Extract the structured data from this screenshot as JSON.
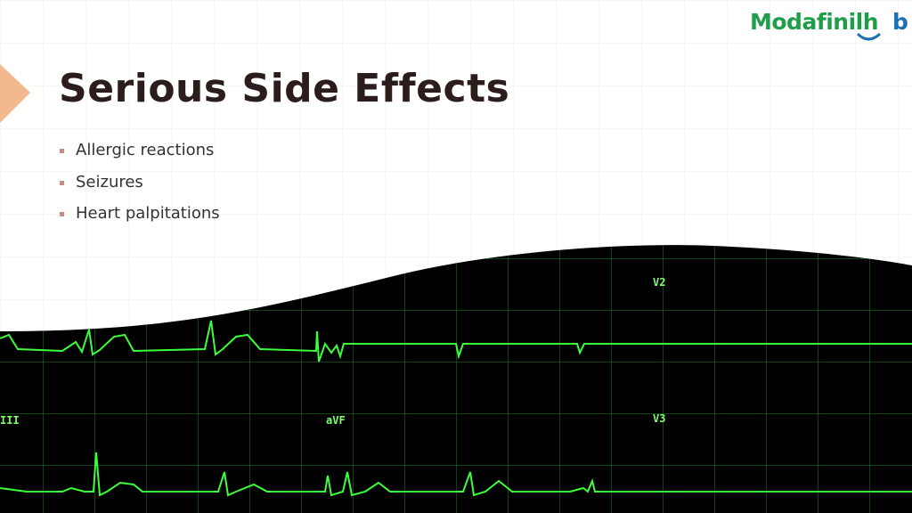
{
  "logo": {
    "text": "Modafinilh",
    "end": "b"
  },
  "header": {
    "title": "Serious Side Effects"
  },
  "bullets": [
    "Allergic reactions",
    "Seizures",
    "Heart palpitations"
  ],
  "ecg_labels": [
    "V2",
    "III",
    "aVF",
    "V3"
  ]
}
